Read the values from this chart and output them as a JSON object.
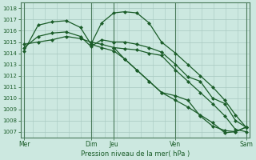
{
  "background_color": "#cce8e0",
  "grid_color": "#a8c8c0",
  "line_color": "#1a5c28",
  "vline_color": "#4a7a5a",
  "xlabel": "Pression niveau de la mer( hPa )",
  "ylim": [
    1006.5,
    1018.5
  ],
  "yticks": [
    1007,
    1008,
    1009,
    1010,
    1011,
    1012,
    1013,
    1014,
    1015,
    1016,
    1017,
    1018
  ],
  "xlim": [
    0,
    130
  ],
  "xtick_positions": [
    2,
    40,
    53,
    88,
    128
  ],
  "xtick_labels": [
    "Mer",
    "Dim",
    "Jeu",
    "Ven",
    "Sam"
  ],
  "vline_positions": [
    2,
    40,
    53,
    88,
    128
  ],
  "series1": {
    "x": [
      2,
      10,
      18,
      26,
      34,
      40,
      46,
      53,
      59,
      66,
      73,
      80,
      88,
      95,
      102,
      109,
      116,
      122,
      128
    ],
    "y": [
      1014.2,
      1016.5,
      1016.8,
      1016.9,
      1016.3,
      1014.8,
      1016.7,
      1017.6,
      1017.7,
      1017.6,
      1016.7,
      1015.0,
      1014.0,
      1013.0,
      1012.0,
      1011.0,
      1009.8,
      1008.5,
      1007.4
    ]
  },
  "series2": {
    "x": [
      2,
      10,
      18,
      26,
      34,
      40,
      46,
      53,
      59,
      66,
      73,
      80,
      88,
      95,
      102,
      109,
      116,
      122,
      128
    ],
    "y": [
      1014.5,
      1015.5,
      1015.8,
      1015.9,
      1015.5,
      1014.6,
      1015.2,
      1015.0,
      1015.0,
      1014.8,
      1014.5,
      1014.1,
      1013.0,
      1011.9,
      1011.5,
      1010.0,
      1009.5,
      1008.0,
      1007.4
    ]
  },
  "series3": {
    "x": [
      2,
      10,
      18,
      26,
      34,
      40,
      46,
      53,
      59,
      66,
      73,
      80,
      88,
      95,
      102,
      109,
      116,
      122,
      128
    ],
    "y": [
      1014.8,
      1015.0,
      1015.2,
      1015.5,
      1015.3,
      1015.0,
      1014.8,
      1014.5,
      1014.4,
      1014.3,
      1014.0,
      1013.8,
      1012.5,
      1011.5,
      1010.5,
      1009.5,
      1008.4,
      1007.2,
      1007.0
    ]
  },
  "series4": {
    "x": [
      40,
      46,
      53,
      59,
      66,
      73,
      80,
      88,
      95,
      102,
      109,
      116,
      122,
      128
    ],
    "y": [
      1014.8,
      1014.5,
      1014.2,
      1013.5,
      1012.5,
      1011.5,
      1010.5,
      1010.2,
      1009.8,
      1008.4,
      1007.5,
      1007.1,
      1007.0,
      1007.4
    ]
  },
  "series5": {
    "x": [
      53,
      59,
      66,
      73,
      80,
      88,
      95,
      102,
      109,
      116,
      122,
      128
    ],
    "y": [
      1014.5,
      1013.5,
      1012.5,
      1011.5,
      1010.5,
      1009.8,
      1009.2,
      1008.5,
      1007.8,
      1006.9,
      1007.0,
      1007.4
    ]
  }
}
